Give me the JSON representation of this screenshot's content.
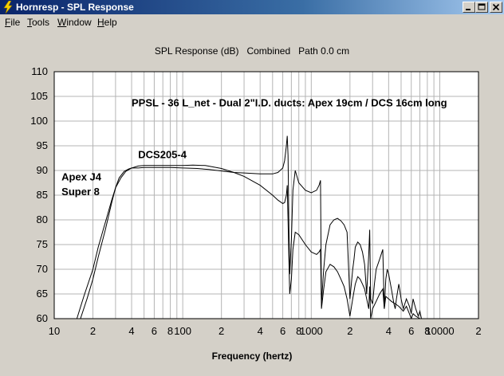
{
  "window": {
    "title": "Hornresp - SPL Response",
    "icon": "lightning-bolt-icon"
  },
  "menu": {
    "items": [
      {
        "label": "File",
        "key": "F",
        "rest": "ile"
      },
      {
        "label": "Tools",
        "key": "T",
        "rest": "ools"
      },
      {
        "label": "Window",
        "key": "W",
        "rest": "indow"
      },
      {
        "label": "Help",
        "key": "H",
        "rest": "elp"
      }
    ]
  },
  "colors": {
    "titlebar_start": "#0a246a",
    "titlebar_end": "#a6caf0",
    "plot_background": "#ffffff",
    "grid": "#b4b4b4",
    "curve": "#000000"
  },
  "chart_data": {
    "type": "line",
    "title": "SPL Response (dB)   Combined   Path 0.0 cm",
    "xlabel": "Frequency (hertz)",
    "ylabel": "",
    "x_scale": "log",
    "xlim": [
      10,
      20000
    ],
    "ylim": [
      60,
      110
    ],
    "y_ticks": [
      60,
      65,
      70,
      75,
      80,
      85,
      90,
      95,
      100,
      105,
      110
    ],
    "x_tick_labels": [
      {
        "x": 10,
        "label": "10"
      },
      {
        "x": 20,
        "label": "2"
      },
      {
        "x": 40,
        "label": "4"
      },
      {
        "x": 60,
        "label": "6"
      },
      {
        "x": 80,
        "label": "8"
      },
      {
        "x": 100,
        "label": "100"
      },
      {
        "x": 200,
        "label": "2"
      },
      {
        "x": 400,
        "label": "4"
      },
      {
        "x": 600,
        "label": "6"
      },
      {
        "x": 800,
        "label": "8"
      },
      {
        "x": 1000,
        "label": "1000"
      },
      {
        "x": 2000,
        "label": "2"
      },
      {
        "x": 4000,
        "label": "4"
      },
      {
        "x": 6000,
        "label": "6"
      },
      {
        "x": 8000,
        "label": "8"
      },
      {
        "x": 10000,
        "label": "10000"
      },
      {
        "x": 20000,
        "label": "2"
      }
    ],
    "grid": true,
    "annotations": [
      {
        "text": "PPSL - 36 L_net - Dual 2\"I.D. ducts: Apex 19cm / DCS 16cm long",
        "x": 40,
        "y": 103
      },
      {
        "text": "DCS205-4",
        "x": 45,
        "y": 92.5
      },
      {
        "text": "Apex J4",
        "x": 11.4,
        "y": 88
      },
      {
        "text": "Super 8",
        "x": 11.4,
        "y": 85
      }
    ],
    "series": [
      {
        "x": [
          16,
          18,
          20,
          22,
          25,
          28,
          30,
          32,
          35,
          38,
          40,
          45,
          50,
          60,
          80,
          100,
          130,
          160,
          200,
          250,
          300,
          400,
          500,
          550,
          600,
          620,
          640,
          650,
          660,
          670,
          680,
          700,
          720,
          750,
          800,
          900,
          1000,
          1100,
          1150,
          1180,
          1200,
          1250,
          1300,
          1400,
          1500,
          1600,
          1700,
          1800,
          1900,
          2000,
          2100,
          2150,
          2200,
          2300,
          2400,
          2500,
          2600,
          2700,
          2800,
          2850,
          2900,
          3000,
          3100,
          3200,
          3400,
          3600,
          3700,
          3800,
          3900,
          4000,
          4200,
          4400,
          4500,
          4600,
          4800,
          5000,
          5200,
          5500,
          5800,
          6000,
          6200,
          6500,
          6800,
          7000,
          7200,
          7500
        ],
        "values": [
          60.0,
          64.0,
          68.0,
          72.5,
          78.0,
          83.5,
          86.5,
          88.5,
          89.8,
          90.3,
          90.5,
          90.5,
          90.6,
          90.6,
          90.6,
          90.5,
          90.4,
          90.2,
          89.9,
          89.6,
          89.5,
          89.3,
          89.3,
          89.6,
          90.5,
          92.0,
          95.0,
          97.0,
          93.0,
          78.0,
          69.0,
          76.0,
          86.0,
          90.0,
          87.5,
          86.0,
          85.5,
          86.0,
          87.0,
          88.0,
          63.0,
          70.0,
          75.0,
          79.0,
          80.0,
          80.3,
          79.8,
          79.0,
          77.5,
          64.0,
          70.0,
          72.0,
          74.5,
          75.5,
          75.0,
          73.5,
          71.0,
          65.0,
          73.0,
          78.0,
          64.0,
          63.0,
          67.0,
          70.0,
          72.0,
          74.0,
          62.0,
          68.0,
          70.0,
          69.0,
          66.0,
          63.0,
          62.0,
          64.0,
          67.0,
          64.0,
          62.0,
          64.0,
          62.5,
          61.0,
          64.0,
          62.0,
          60.5,
          61.5,
          60.0,
          60.0
        ]
      },
      {
        "x": [
          15,
          17,
          20,
          22,
          25,
          28,
          30,
          33,
          36,
          40,
          45,
          50,
          60,
          80,
          100,
          120,
          150,
          200,
          250,
          300,
          400,
          500,
          550,
          600,
          620,
          640,
          650,
          660,
          670,
          680,
          700,
          720,
          750,
          800,
          900,
          1000,
          1100,
          1150,
          1180,
          1200,
          1250,
          1300,
          1400,
          1500,
          1600,
          1700,
          1800,
          1900,
          2000,
          2100,
          2200,
          2300,
          2400,
          2500,
          2600,
          2700,
          2800,
          2850,
          2900,
          3000,
          3200,
          3400,
          3600,
          3700,
          3800,
          4000,
          4200,
          4500,
          4800,
          5000,
          5200,
          5500,
          5800,
          6000,
          6200,
          6500,
          7000,
          7500
        ],
        "values": [
          60.0,
          64.5,
          70.0,
          74.5,
          79.5,
          84.0,
          86.5,
          88.5,
          89.8,
          90.5,
          90.9,
          91.0,
          91.0,
          91.0,
          91.0,
          91.1,
          91.0,
          90.4,
          89.6,
          88.8,
          87.0,
          85.0,
          84.0,
          83.3,
          83.5,
          85.0,
          87.0,
          80.0,
          72.0,
          65.0,
          68.0,
          74.0,
          77.5,
          77.0,
          75.0,
          73.5,
          73.0,
          73.5,
          74.0,
          62.0,
          66.0,
          69.5,
          71.0,
          70.5,
          69.5,
          68.0,
          66.5,
          64.0,
          60.5,
          64.0,
          67.0,
          68.5,
          68.0,
          67.0,
          66.0,
          64.0,
          62.0,
          66.5,
          60.0,
          62.0,
          63.5,
          65.0,
          66.0,
          62.0,
          64.5,
          64.0,
          63.5,
          63.0,
          62.5,
          62.0,
          61.5,
          62.5,
          61.0,
          60.0,
          61.0,
          60.5,
          60.0,
          60.0
        ]
      }
    ]
  }
}
